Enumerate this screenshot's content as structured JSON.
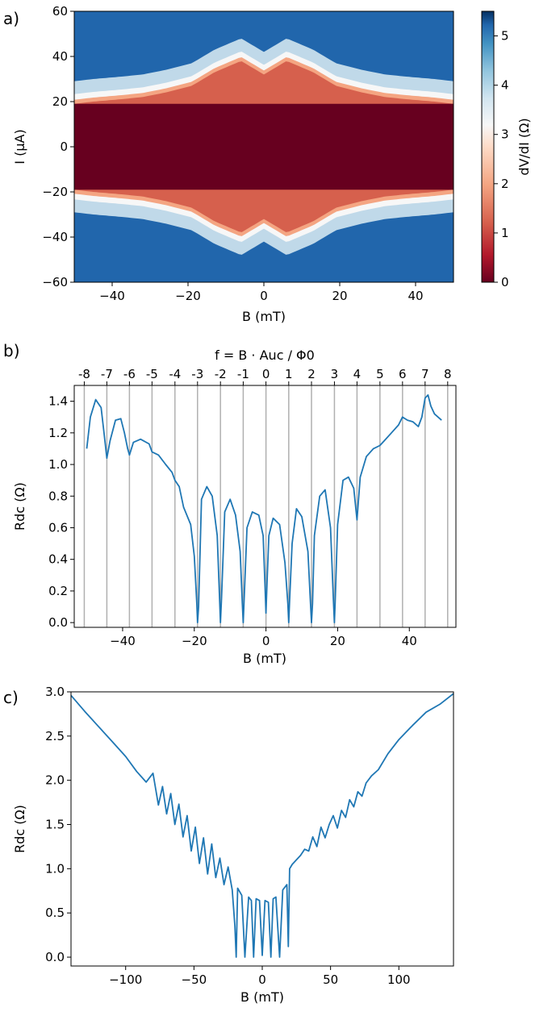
{
  "panel_labels": [
    "a)",
    "b)",
    "c)"
  ],
  "chart_data": [
    {
      "panel": "a)",
      "type": "heatmap",
      "xlabel": "B (mT)",
      "ylabel": "I (µA)",
      "xlim": [
        -50,
        50
      ],
      "ylim": [
        -60,
        60
      ],
      "xticks": [
        -40,
        -20,
        0,
        20,
        40
      ],
      "yticks": [
        -60,
        -40,
        -20,
        0,
        20,
        40,
        60
      ],
      "colorbar": {
        "label": "dV/dI (Ω)",
        "range": [
          0,
          5.5
        ],
        "ticks": [
          0,
          1,
          2,
          3,
          4,
          5
        ],
        "colormap": "RdBu"
      },
      "critical_current_envelope": {
        "B": [
          -50,
          -45,
          -38,
          -32,
          -26,
          -19,
          -13,
          -6,
          0,
          6,
          13,
          19,
          26,
          32,
          38,
          45,
          50
        ],
        "I": [
          19,
          20,
          21,
          22,
          24,
          27,
          33,
          38,
          32,
          38,
          33,
          27,
          24,
          22,
          21,
          20,
          19
        ]
      },
      "colors": {
        "superconducting": "#67001f",
        "normal": "#2166ac",
        "transition": "#f7f7f7"
      }
    },
    {
      "panel": "b)",
      "type": "line",
      "xlabel": "B (mT)",
      "ylabel": "Rdc (Ω)",
      "top_axis_label": "f = B · Auc / Φ0",
      "xlim": [
        -53.5,
        53
      ],
      "ylim": [
        -0.03,
        1.5
      ],
      "xticks": [
        -40,
        -20,
        0,
        20,
        40
      ],
      "yticks": [
        0.0,
        0.2,
        0.4,
        0.6,
        0.8,
        1.0,
        1.2,
        1.4
      ],
      "top_ticks": [
        "-8",
        "-7",
        "-6",
        "-5",
        "-4",
        "-3",
        "-2",
        "-1",
        "0",
        "1",
        "2",
        "3",
        "4",
        "5",
        "6",
        "7",
        "8"
      ],
      "vertical_lines_B": [
        -50.7,
        -44.4,
        -38.1,
        -31.8,
        -25.4,
        -19.1,
        -12.7,
        -6.35,
        0,
        6.35,
        12.7,
        19.1,
        25.4,
        31.8,
        38.1,
        44.4,
        50.7
      ],
      "series": [
        {
          "color": "#1f77b4",
          "x": [
            -50,
            -49,
            -47.5,
            -46,
            -45.2,
            -44.4,
            -43.5,
            -42,
            -40.5,
            -39.5,
            -38.6,
            -38.1,
            -37,
            -35,
            -32.6,
            -31.8,
            -30,
            -28,
            -26.2,
            -25.4,
            -24.2,
            -23,
            -21,
            -20,
            -19.3,
            -19.1,
            -18.8,
            -18,
            -16.5,
            -15,
            -13.6,
            -13,
            -12.7,
            -12.4,
            -11.5,
            -10,
            -8.5,
            -7.2,
            -6.6,
            -6.35,
            -6.1,
            -5.3,
            -3.8,
            -2,
            -0.8,
            -0.3,
            0,
            0.3,
            0.8,
            2,
            3.8,
            5.3,
            6.1,
            6.35,
            6.6,
            7.3,
            8.5,
            10,
            11.7,
            12.4,
            12.7,
            13,
            13.5,
            15,
            16.5,
            18,
            18.8,
            19.1,
            19.3,
            20,
            21.5,
            23,
            24.5,
            25.4,
            26.3,
            28,
            30,
            31.8,
            33,
            35,
            37,
            38.1,
            39.5,
            41,
            42.5,
            43.5,
            44.4,
            45.2,
            46,
            47,
            48,
            49
          ],
          "values": [
            1.1,
            1.3,
            1.41,
            1.36,
            1.2,
            1.04,
            1.15,
            1.28,
            1.29,
            1.2,
            1.1,
            1.06,
            1.14,
            1.16,
            1.13,
            1.08,
            1.06,
            1.0,
            0.95,
            0.9,
            0.86,
            0.73,
            0.62,
            0.42,
            0.12,
            0.0,
            0.1,
            0.78,
            0.86,
            0.8,
            0.55,
            0.18,
            0.0,
            0.15,
            0.7,
            0.78,
            0.68,
            0.45,
            0.12,
            0.0,
            0.14,
            0.6,
            0.7,
            0.68,
            0.55,
            0.25,
            0.06,
            0.25,
            0.55,
            0.66,
            0.62,
            0.38,
            0.12,
            0.0,
            0.14,
            0.5,
            0.72,
            0.67,
            0.45,
            0.13,
            0.0,
            0.12,
            0.55,
            0.8,
            0.84,
            0.6,
            0.15,
            0.0,
            0.12,
            0.62,
            0.9,
            0.92,
            0.85,
            0.65,
            0.92,
            1.05,
            1.1,
            1.12,
            1.15,
            1.2,
            1.25,
            1.3,
            1.28,
            1.27,
            1.24,
            1.3,
            1.42,
            1.44,
            1.37,
            1.32,
            1.3,
            1.28
          ]
        }
      ]
    },
    {
      "panel": "c)",
      "type": "line",
      "xlabel": "B (mT)",
      "ylabel": "Rdc (Ω)",
      "xlim": [
        -140,
        140
      ],
      "ylim": [
        -0.1,
        3.0
      ],
      "xticks": [
        -100,
        -50,
        0,
        50,
        100
      ],
      "yticks": [
        0.0,
        0.5,
        1.0,
        1.5,
        2.0,
        2.5,
        3.0
      ],
      "series": [
        {
          "color": "#1f77b4",
          "x": [
            -140,
            -130,
            -120,
            -110,
            -100,
            -92,
            -85,
            -80,
            -76,
            -73,
            -70,
            -67,
            -64,
            -61,
            -58,
            -55,
            -52,
            -49,
            -46,
            -43,
            -40,
            -37,
            -34,
            -31,
            -28,
            -25,
            -22,
            -20,
            -19.1,
            -18,
            -15,
            -12.7,
            -10,
            -8,
            -6.35,
            -4.5,
            -2,
            0,
            2,
            4.5,
            6.35,
            8,
            10,
            12.7,
            15,
            18,
            19.1,
            20,
            22,
            25,
            28,
            31,
            34,
            37,
            40,
            43,
            46,
            49,
            52,
            55,
            58,
            61,
            64,
            67,
            70,
            73,
            76,
            80,
            85,
            92,
            100,
            110,
            120,
            130,
            140
          ],
          "values": [
            2.96,
            2.78,
            2.61,
            2.44,
            2.27,
            2.1,
            1.98,
            2.08,
            1.72,
            1.93,
            1.62,
            1.85,
            1.5,
            1.73,
            1.36,
            1.6,
            1.2,
            1.47,
            1.06,
            1.35,
            0.94,
            1.28,
            0.9,
            1.12,
            0.82,
            1.02,
            0.76,
            0.35,
            0.0,
            0.78,
            0.7,
            0.0,
            0.68,
            0.64,
            0.0,
            0.66,
            0.64,
            0.02,
            0.64,
            0.62,
            0.0,
            0.66,
            0.68,
            0.0,
            0.76,
            0.82,
            0.12,
            1.0,
            1.05,
            1.1,
            1.15,
            1.22,
            1.2,
            1.36,
            1.25,
            1.47,
            1.35,
            1.5,
            1.6,
            1.46,
            1.66,
            1.58,
            1.78,
            1.7,
            1.87,
            1.82,
            1.97,
            2.05,
            2.12,
            2.3,
            2.46,
            2.62,
            2.77,
            2.86,
            2.98
          ]
        }
      ]
    }
  ]
}
